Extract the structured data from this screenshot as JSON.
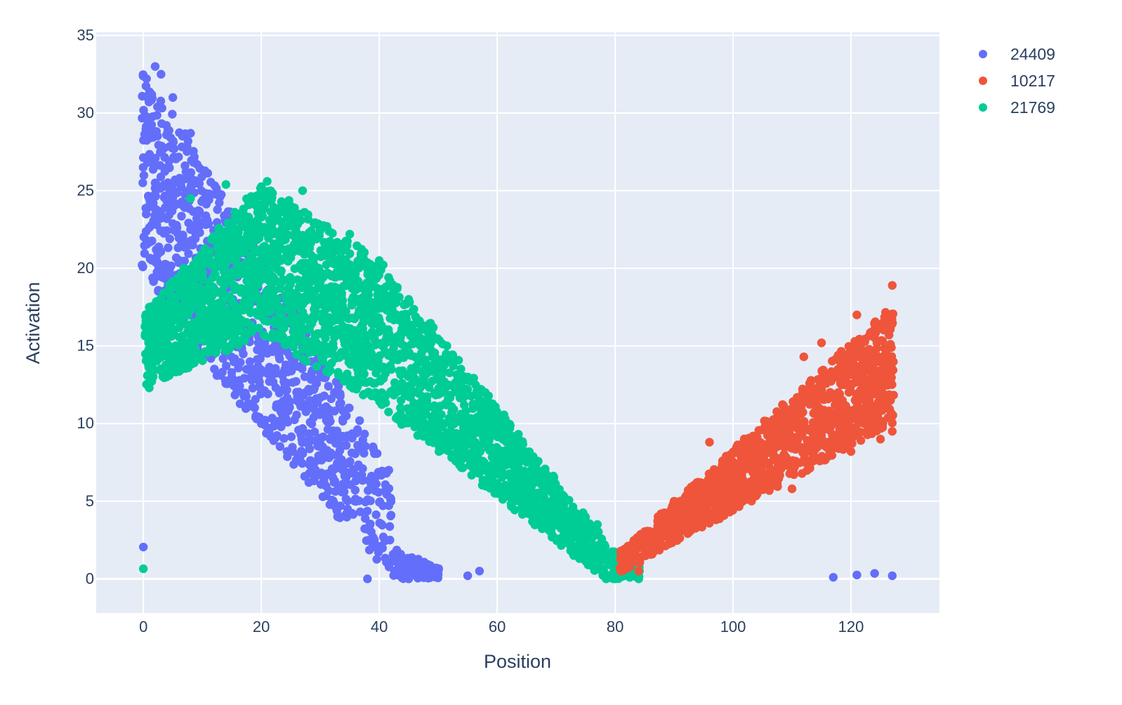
{
  "chart_data": {
    "type": "scatter",
    "title": "",
    "xlabel": "Position",
    "ylabel": "Activation",
    "xlim": [
      -8,
      135
    ],
    "ylim": [
      -2.2,
      35.2
    ],
    "x_ticks": [
      0,
      20,
      40,
      60,
      80,
      100,
      120
    ],
    "y_ticks": [
      0,
      5,
      10,
      15,
      20,
      25,
      30,
      35
    ],
    "grid": true,
    "legend_position": "top-right",
    "series": [
      {
        "name": "24409",
        "color": "#636efa",
        "description_points": [
          {
            "x": 0,
            "y": 2.05
          },
          {
            "x": 1,
            "y": 24.5
          },
          {
            "x": 2,
            "y": 25.5
          },
          {
            "x": 2,
            "y": 33.0
          },
          {
            "x": 3,
            "y": 32.5
          },
          {
            "x": 5,
            "y": 31.0
          },
          {
            "x": 8,
            "y": 28.7
          },
          {
            "x": 8,
            "y": 22.5
          },
          {
            "x": 10,
            "y": 14.5
          },
          {
            "x": 15,
            "y": 13.0
          },
          {
            "x": 20,
            "y": 10.0
          },
          {
            "x": 24,
            "y": 12.5
          },
          {
            "x": 30,
            "y": 8.5
          },
          {
            "x": 33,
            "y": 7.5
          },
          {
            "x": 36,
            "y": 6.3
          },
          {
            "x": 38,
            "y": 0.0
          },
          {
            "x": 42,
            "y": 4.1
          },
          {
            "x": 45,
            "y": 0.0
          },
          {
            "x": 50,
            "y": 0.3
          },
          {
            "x": 55,
            "y": 0.2
          },
          {
            "x": 57,
            "y": 0.5
          },
          {
            "x": 117,
            "y": 0.1
          },
          {
            "x": 121,
            "y": 0.25
          },
          {
            "x": 124,
            "y": 0.35
          },
          {
            "x": 127,
            "y": 0.2
          }
        ]
      },
      {
        "name": "10217",
        "color": "#ef553b",
        "description_points": [
          {
            "x": 81,
            "y": 1.8
          },
          {
            "x": 84,
            "y": 0.5
          },
          {
            "x": 90,
            "y": 5.0
          },
          {
            "x": 96,
            "y": 8.8
          },
          {
            "x": 100,
            "y": 7.5
          },
          {
            "x": 104,
            "y": 5.8
          },
          {
            "x": 110,
            "y": 5.8
          },
          {
            "x": 112,
            "y": 14.3
          },
          {
            "x": 115,
            "y": 15.2
          },
          {
            "x": 120,
            "y": 8.2
          },
          {
            "x": 121,
            "y": 17.0
          },
          {
            "x": 125,
            "y": 9.0
          },
          {
            "x": 127,
            "y": 18.9
          },
          {
            "x": 127,
            "y": 9.5
          }
        ]
      },
      {
        "name": "21769",
        "color": "#00cc96",
        "description_points": [
          {
            "x": 0,
            "y": 0.65
          },
          {
            "x": 1,
            "y": 12.3
          },
          {
            "x": 1,
            "y": 17.5
          },
          {
            "x": 8,
            "y": 24.5
          },
          {
            "x": 14,
            "y": 25.4
          },
          {
            "x": 21,
            "y": 25.6
          },
          {
            "x": 27,
            "y": 25.0
          },
          {
            "x": 35,
            "y": 22.2
          },
          {
            "x": 40,
            "y": 20.5
          },
          {
            "x": 45,
            "y": 18.0
          },
          {
            "x": 50,
            "y": 9.0
          },
          {
            "x": 55,
            "y": 13.0
          },
          {
            "x": 60,
            "y": 5.5
          },
          {
            "x": 65,
            "y": 8.0
          },
          {
            "x": 70,
            "y": 5.0
          },
          {
            "x": 73,
            "y": 1.5
          },
          {
            "x": 77,
            "y": 3.5
          },
          {
            "x": 80,
            "y": 0.0
          },
          {
            "x": 84,
            "y": 0.0
          }
        ]
      }
    ]
  }
}
